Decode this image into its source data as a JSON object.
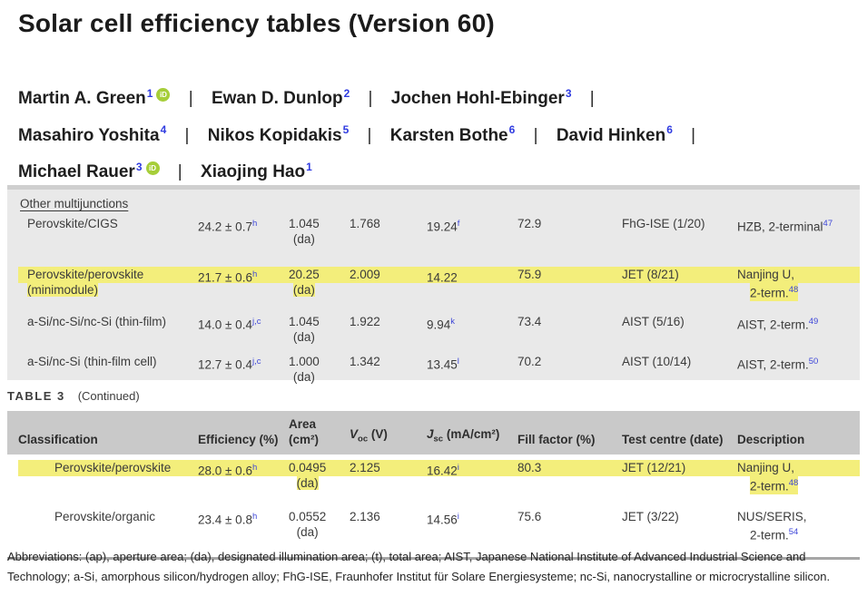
{
  "page": {
    "title": "Solar cell efficiency tables (Version 60)"
  },
  "colors": {
    "highlight": "#f3ee7b",
    "panel_grey": "#e9e9e9",
    "header_band_grey": "#c9c9c9",
    "superscript_blue": "#3e47d8",
    "orcid_green": "#a6ce39"
  },
  "authors": {
    "separator": "|",
    "orcid_label": "iD",
    "list": [
      {
        "name": "Martin A. Green",
        "sup": "1"
      },
      {
        "name": "Ewan D. Dunlop",
        "sup": "2"
      },
      {
        "name": "Jochen Hohl-Ebinger",
        "sup": "3"
      },
      {
        "name": "Masahiro Yoshita",
        "sup": "4"
      },
      {
        "name": "Nikos Kopidakis",
        "sup": "5"
      },
      {
        "name": "Karsten Bothe",
        "sup": "6"
      },
      {
        "name": "David Hinken",
        "sup": "6"
      },
      {
        "name": "Michael Rauer",
        "sup": "3"
      },
      {
        "name": "Xiaojing Hao",
        "sup": "1"
      }
    ]
  },
  "table_top": {
    "section": "Other multijunctions",
    "rows": [
      {
        "classification": "Perovskite/CIGS",
        "classification2": "",
        "efficiency": "24.2 ± 0.7",
        "eff_sup": "h",
        "area": "1.045",
        "area_note": "(da)",
        "voc": "1.768",
        "jsc": "19.24",
        "jsc_sup": "f",
        "ff": "72.9",
        "centre": "FhG-ISE (1/20)",
        "desc1": "HZB, 2-terminal",
        "desc1_sup": "47",
        "desc2": "",
        "desc2_sup": "",
        "highlight": false
      },
      {
        "classification": "Perovskite/perovskite",
        "classification2": "(minimodule)",
        "efficiency": "21.7 ± 0.6",
        "eff_sup": "h",
        "area": "20.25",
        "area_note": "(da)",
        "voc": "2.009",
        "jsc": "14.22",
        "jsc_sup": "",
        "ff": "75.9",
        "centre": "JET (8/21)",
        "desc1": "Nanjing U,",
        "desc1_sup": "",
        "desc2": "2-term.",
        "desc2_sup": "48",
        "highlight": true
      },
      {
        "classification": "a-Si/nc-Si/nc-Si (thin-film)",
        "classification2": "",
        "efficiency": "14.0 ± 0.4",
        "eff_sup": "j,c",
        "area": "1.045",
        "area_note": "(da)",
        "voc": "1.922",
        "jsc": "9.94",
        "jsc_sup": "k",
        "ff": "73.4",
        "centre": "AIST (5/16)",
        "desc1": "AIST, 2-term.",
        "desc1_sup": "49",
        "desc2": "",
        "desc2_sup": "",
        "highlight": false
      },
      {
        "classification": "a-Si/nc-Si (thin-film cell)",
        "classification2": "",
        "efficiency": "12.7 ± 0.4",
        "eff_sup": "j,c",
        "area": "1.000",
        "area_note": "(da)",
        "voc": "1.342",
        "jsc": "13.45",
        "jsc_sup": "l",
        "ff": "70.2",
        "centre": "AIST (10/14)",
        "desc1": "AIST, 2-term.",
        "desc1_sup": "50",
        "desc2": "",
        "desc2_sup": "",
        "highlight": false
      }
    ]
  },
  "table_label": {
    "name": "TABLE 3",
    "continued": "(Continued)"
  },
  "table3": {
    "headers": {
      "classification": "Classification",
      "efficiency": "Efficiency (%)",
      "area_line1": "Area",
      "area_line2": "(cm²)",
      "voc_main": "V",
      "voc_sub": "oc",
      "voc_rest": " (V)",
      "jsc_main": "J",
      "jsc_sub": "sc",
      "jsc_rest": " (mA/cm²)",
      "fill": "Fill factor (%)",
      "centre": "Test centre (date)",
      "description": "Description"
    },
    "rows": [
      {
        "classification": "Perovskite/perovskite",
        "efficiency": "28.0 ± 0.6",
        "eff_sup": "h",
        "area": "0.0495",
        "area_note": "(da)",
        "voc": "2.125",
        "jsc": "16.42",
        "jsc_sup": "i",
        "ff": "80.3",
        "centre": "JET (12/21)",
        "desc1": "Nanjing U,",
        "desc2": "2-term.",
        "desc2_sup": "48",
        "highlight": true
      },
      {
        "classification": "Perovskite/organic",
        "efficiency": "23.4 ± 0.8",
        "eff_sup": "h",
        "area": "0.0552",
        "area_note": "(da)",
        "voc": "2.136",
        "jsc": "14.56",
        "jsc_sup": "i",
        "ff": "75.6",
        "centre": "JET (3/22)",
        "desc1": "NUS/SERIS,",
        "desc2": "2-term.",
        "desc2_sup": "54",
        "highlight": false
      }
    ]
  },
  "footnote": "Abbreviations: (ap), aperture area; (da), designated illumination area; (t), total area; AIST, Japanese National Institute of Advanced Industrial Science and Technology; a-Si, amorphous silicon/hydrogen alloy; FhG-ISE, Fraunhofer Institut für Solare Energiesysteme; nc-Si, nanocrystalline or microcrystalline silicon."
}
